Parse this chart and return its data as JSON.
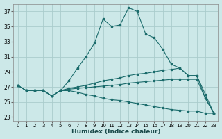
{
  "xlabel": "Humidex (Indice chaleur)",
  "bg_color": "#cce8e8",
  "grid_color": "#aacccc",
  "line_color": "#1a6b6b",
  "xlim": [
    -0.5,
    23.5
  ],
  "ylim": [
    22.5,
    38.0
  ],
  "yticks": [
    23,
    25,
    27,
    29,
    31,
    33,
    35,
    37
  ],
  "xticks": [
    0,
    1,
    2,
    3,
    4,
    5,
    6,
    7,
    8,
    9,
    10,
    11,
    12,
    13,
    14,
    15,
    16,
    17,
    18,
    19,
    20,
    21,
    22,
    23
  ],
  "lines": [
    {
      "x": [
        0,
        1,
        2,
        3,
        4,
        5,
        6,
        7,
        8,
        9,
        10,
        11,
        12,
        13,
        14,
        15,
        16,
        17,
        18,
        19,
        20,
        21,
        22,
        23
      ],
      "y": [
        27.2,
        26.5,
        26.5,
        26.5,
        25.8,
        26.5,
        27.8,
        29.5,
        31.0,
        32.8,
        36.0,
        35.0,
        35.2,
        37.5,
        37.0,
        34.0,
        33.5,
        32.0,
        30.0,
        29.5,
        28.5,
        28.5,
        25.5,
        23.5
      ]
    },
    {
      "x": [
        0,
        1,
        2,
        3,
        4,
        5,
        6,
        7,
        8,
        9,
        10,
        11,
        12,
        13,
        14,
        15,
        16,
        17,
        18,
        19,
        20,
        21,
        22,
        23
      ],
      "y": [
        27.2,
        26.5,
        26.5,
        26.5,
        25.8,
        26.5,
        26.8,
        27.0,
        27.2,
        27.5,
        27.8,
        28.0,
        28.2,
        28.5,
        28.7,
        28.8,
        29.0,
        29.2,
        29.3,
        29.5,
        28.5,
        28.5,
        26.0,
        23.5
      ]
    },
    {
      "x": [
        0,
        1,
        2,
        3,
        4,
        5,
        6,
        7,
        8,
        9,
        10,
        11,
        12,
        13,
        14,
        15,
        16,
        17,
        18,
        19,
        20,
        21,
        22,
        23
      ],
      "y": [
        27.2,
        26.5,
        26.5,
        26.5,
        25.8,
        26.5,
        26.7,
        26.8,
        26.9,
        27.0,
        27.1,
        27.2,
        27.3,
        27.5,
        27.6,
        27.7,
        27.8,
        27.9,
        28.0,
        28.0,
        28.0,
        28.0,
        25.5,
        23.5
      ]
    },
    {
      "x": [
        0,
        1,
        2,
        3,
        4,
        5,
        6,
        7,
        8,
        9,
        10,
        11,
        12,
        13,
        14,
        15,
        16,
        17,
        18,
        19,
        20,
        21,
        22,
        23
      ],
      "y": [
        27.2,
        26.5,
        26.5,
        26.5,
        25.8,
        26.5,
        26.5,
        26.3,
        26.0,
        25.8,
        25.5,
        25.3,
        25.2,
        25.0,
        24.8,
        24.6,
        24.4,
        24.2,
        24.0,
        23.9,
        23.8,
        23.8,
        23.5,
        23.5
      ]
    }
  ]
}
